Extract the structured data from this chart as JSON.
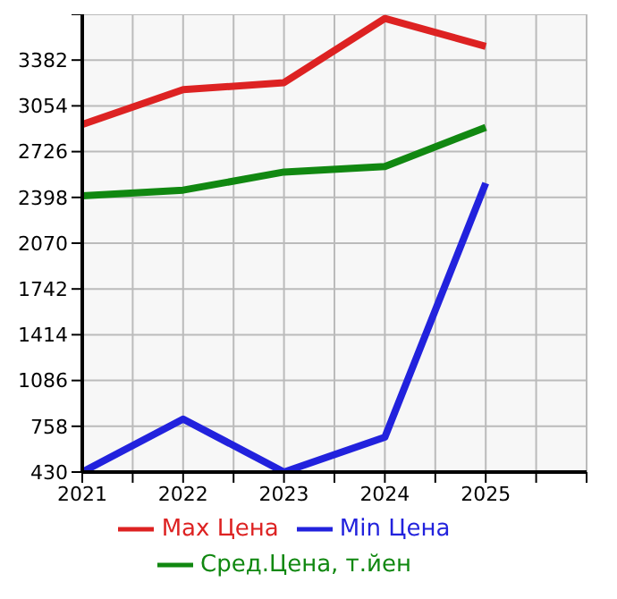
{
  "chart_data": {
    "type": "line",
    "x": [
      2021,
      2022,
      2023,
      2024,
      2025
    ],
    "series": [
      {
        "name": "Max Цена",
        "color": "#dd2222",
        "values": [
          2920,
          3170,
          3220,
          3680,
          3480
        ]
      },
      {
        "name": "Min Цена",
        "color": "#2222dd",
        "values": [
          430,
          810,
          430,
          680,
          2500
        ]
      },
      {
        "name": "Сред.Цена, т.йен",
        "color": "#118811",
        "values": [
          2410,
          2450,
          2580,
          2620,
          2900
        ]
      }
    ],
    "xlim": [
      2021,
      2026
    ],
    "xticks": [
      2021,
      {
        "value": 2021.5,
        "label": null
      },
      2022,
      {
        "value": 2022.5,
        "label": null
      },
      2023,
      {
        "value": 2023.5,
        "label": null
      },
      2024,
      {
        "value": 2024.5,
        "label": null
      },
      2025,
      {
        "value": 2025.5,
        "label": null
      },
      {
        "value": 2026,
        "label": null
      }
    ],
    "ylim": [
      430,
      3710
    ],
    "yticks": [
      430,
      758,
      1086,
      1414,
      1742,
      2070,
      2398,
      2726,
      3054,
      3382,
      {
        "value": 3710,
        "label": null
      }
    ],
    "grid": true,
    "legend": "bottom",
    "marker": "none",
    "line_style": "solid"
  }
}
